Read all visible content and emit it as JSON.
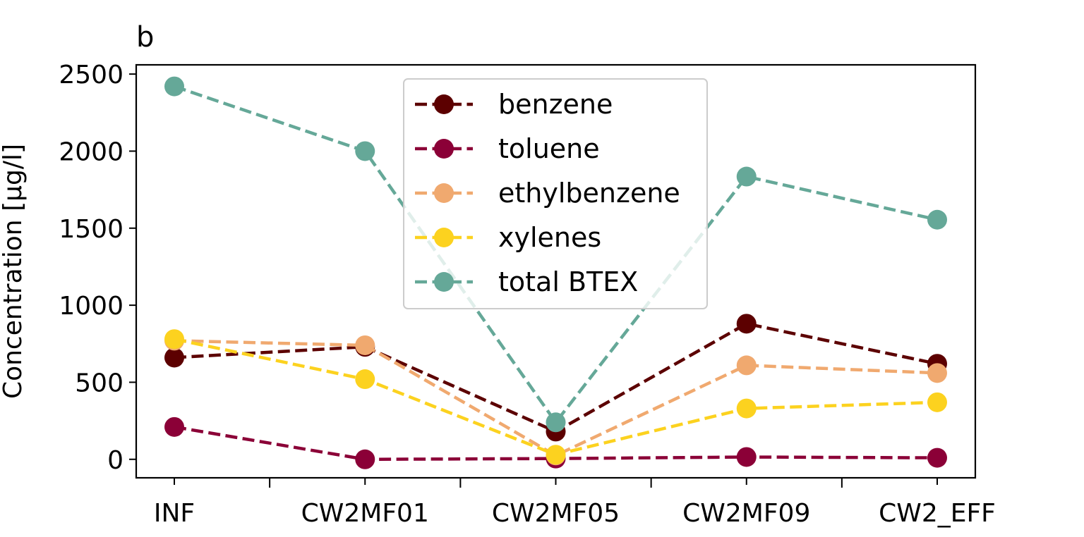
{
  "chart_data": {
    "type": "line",
    "title": "b",
    "xlabel": "",
    "ylabel": "Concentration [µg/l]",
    "categories": [
      "INF",
      "CW2MF01",
      "CW2MF05",
      "CW2MF09",
      "CW2_EFF"
    ],
    "ylim": [
      -120,
      2560
    ],
    "yticks": [
      0,
      500,
      1000,
      1500,
      2000,
      2500
    ],
    "grid": false,
    "legend_position": "top-center",
    "series": [
      {
        "name": "benzene",
        "color": "#5c0000",
        "values": [
          660,
          730,
          180,
          880,
          620
        ]
      },
      {
        "name": "toluene",
        "color": "#8b0037",
        "values": [
          210,
          0,
          5,
          15,
          10
        ]
      },
      {
        "name": "ethylbenzene",
        "color": "#f0a96f",
        "values": [
          770,
          740,
          25,
          610,
          560
        ]
      },
      {
        "name": "xylenes",
        "color": "#fcd21f",
        "values": [
          780,
          520,
          30,
          330,
          370
        ]
      },
      {
        "name": "total BTEX",
        "color": "#65a898",
        "values": [
          2420,
          2000,
          240,
          1835,
          1555
        ]
      }
    ]
  }
}
